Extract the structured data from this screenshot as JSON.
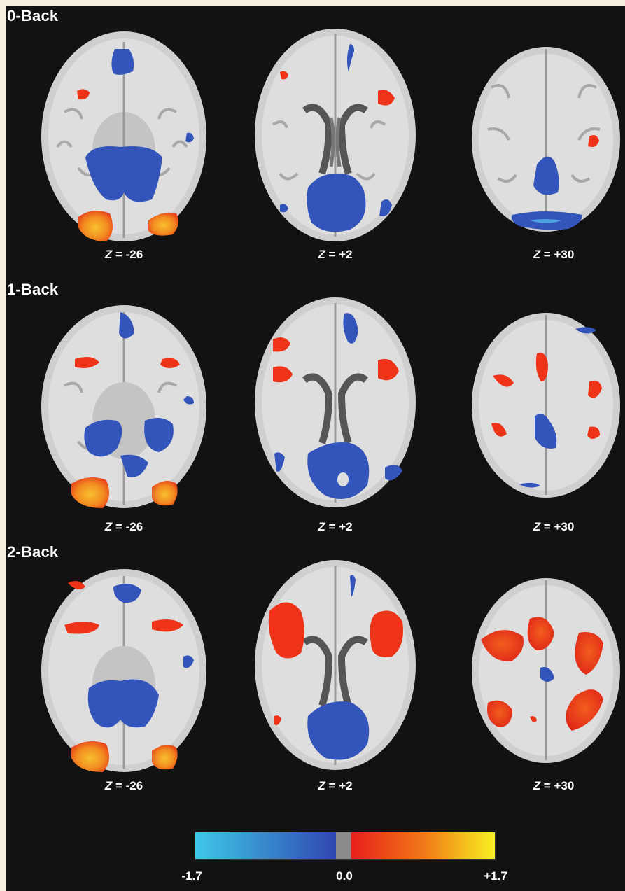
{
  "rows": [
    {
      "label": "0-Back",
      "slices": [
        {
          "z": "-26"
        },
        {
          "z": "+2"
        },
        {
          "z": "+30"
        }
      ]
    },
    {
      "label": "1-Back",
      "slices": [
        {
          "z": "-26"
        },
        {
          "z": "+2"
        },
        {
          "z": "+30"
        }
      ]
    },
    {
      "label": "2-Back",
      "slices": [
        {
          "z": "-26"
        },
        {
          "z": "+2"
        },
        {
          "z": "+30"
        }
      ]
    }
  ],
  "z_prefix": "Z",
  "z_equals": " = ",
  "colorbar": {
    "min_label": "-1.7",
    "mid_label": "0.0",
    "max_label": "+1.7",
    "colors": {
      "neg_light": "#3fc8e8",
      "neg_dark": "#2f47b0",
      "zero": "#8a8a8a",
      "pos_low": "#e8201a",
      "pos_mid": "#f07818",
      "pos_high": "#f8f020"
    }
  },
  "colors": {
    "background": "#121212",
    "activation_blue": "#3355bb",
    "activation_red": "#ee3318",
    "activation_orange": "#f58a20"
  }
}
